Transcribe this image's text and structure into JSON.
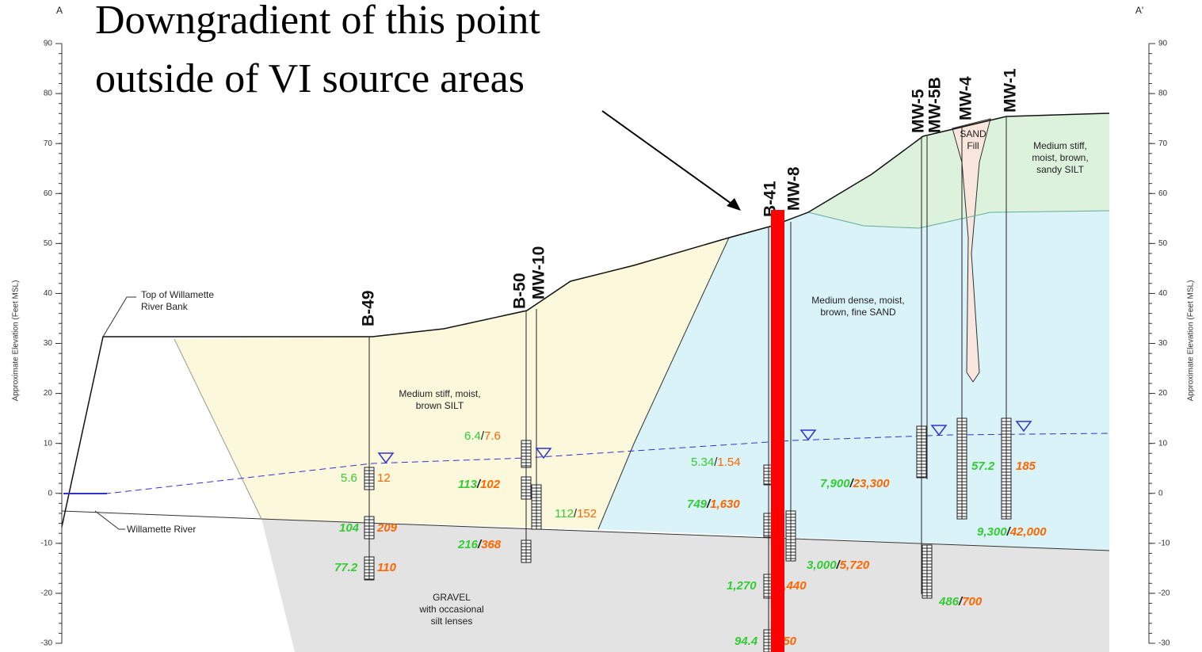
{
  "section": {
    "start": "A",
    "end": "A'"
  },
  "callout": [
    "Downgradient of this point",
    "outside of VI source areas"
  ],
  "axis": {
    "label": "Approximate Elevation (Feet MSL)",
    "ticks": [
      90,
      80,
      70,
      60,
      50,
      40,
      30,
      20,
      10,
      0,
      -10,
      -20,
      -30
    ]
  },
  "wells": [
    "B-49",
    "B-50",
    "MW-10",
    "B-41",
    "MW-8",
    "MW-5",
    "MW-5B",
    "MW-4",
    "MW-1"
  ],
  "labels": [
    [
      "Top of Willamette",
      "River Bank"
    ],
    [
      "Willamette River"
    ]
  ],
  "soils": [
    [
      "Medium stiff, moist,",
      "brown SILT"
    ],
    [
      "Medium dense, moist,",
      "brown, fine SAND"
    ],
    [
      "Medium stiff,",
      "moist, brown,",
      "sandy SILT"
    ],
    [
      "GRAVEL",
      "with occasional",
      "silt lenses"
    ],
    [
      "SAND",
      "Fill"
    ]
  ],
  "concentrations": [
    {
      "green": "5.6",
      "orange": "12"
    },
    {
      "green": "104",
      "orange": "209"
    },
    {
      "green": "77.2",
      "orange": "110"
    },
    {
      "green": "6.4",
      "slash": "/",
      "orange": "7.6"
    },
    {
      "green": "113",
      "slash": "/",
      "orange": "102"
    },
    {
      "green": "112",
      "slash": "/",
      "orange": "152"
    },
    {
      "green": "216",
      "slash": "/",
      "orange": "368"
    },
    {
      "green": "5.34",
      "slash": "/",
      "orange": "1.54"
    },
    {
      "green": "749",
      "slash": "/",
      "orange": "1,630"
    },
    {
      "green": "3,000",
      "slash": "/",
      "orange": "5,720"
    },
    {
      "green": "1,270",
      "orange": "1,440"
    },
    {
      "green": "94.4",
      "orange": "150"
    },
    {
      "green": "7,900",
      "slash": "/",
      "orange": "23,300"
    },
    {
      "green": "57.2",
      "orange": "185"
    },
    {
      "green": "9,300",
      "slash": "/",
      "orange": "42,000"
    },
    {
      "green": "486",
      "slash": "/",
      "orange": "700"
    }
  ]
}
